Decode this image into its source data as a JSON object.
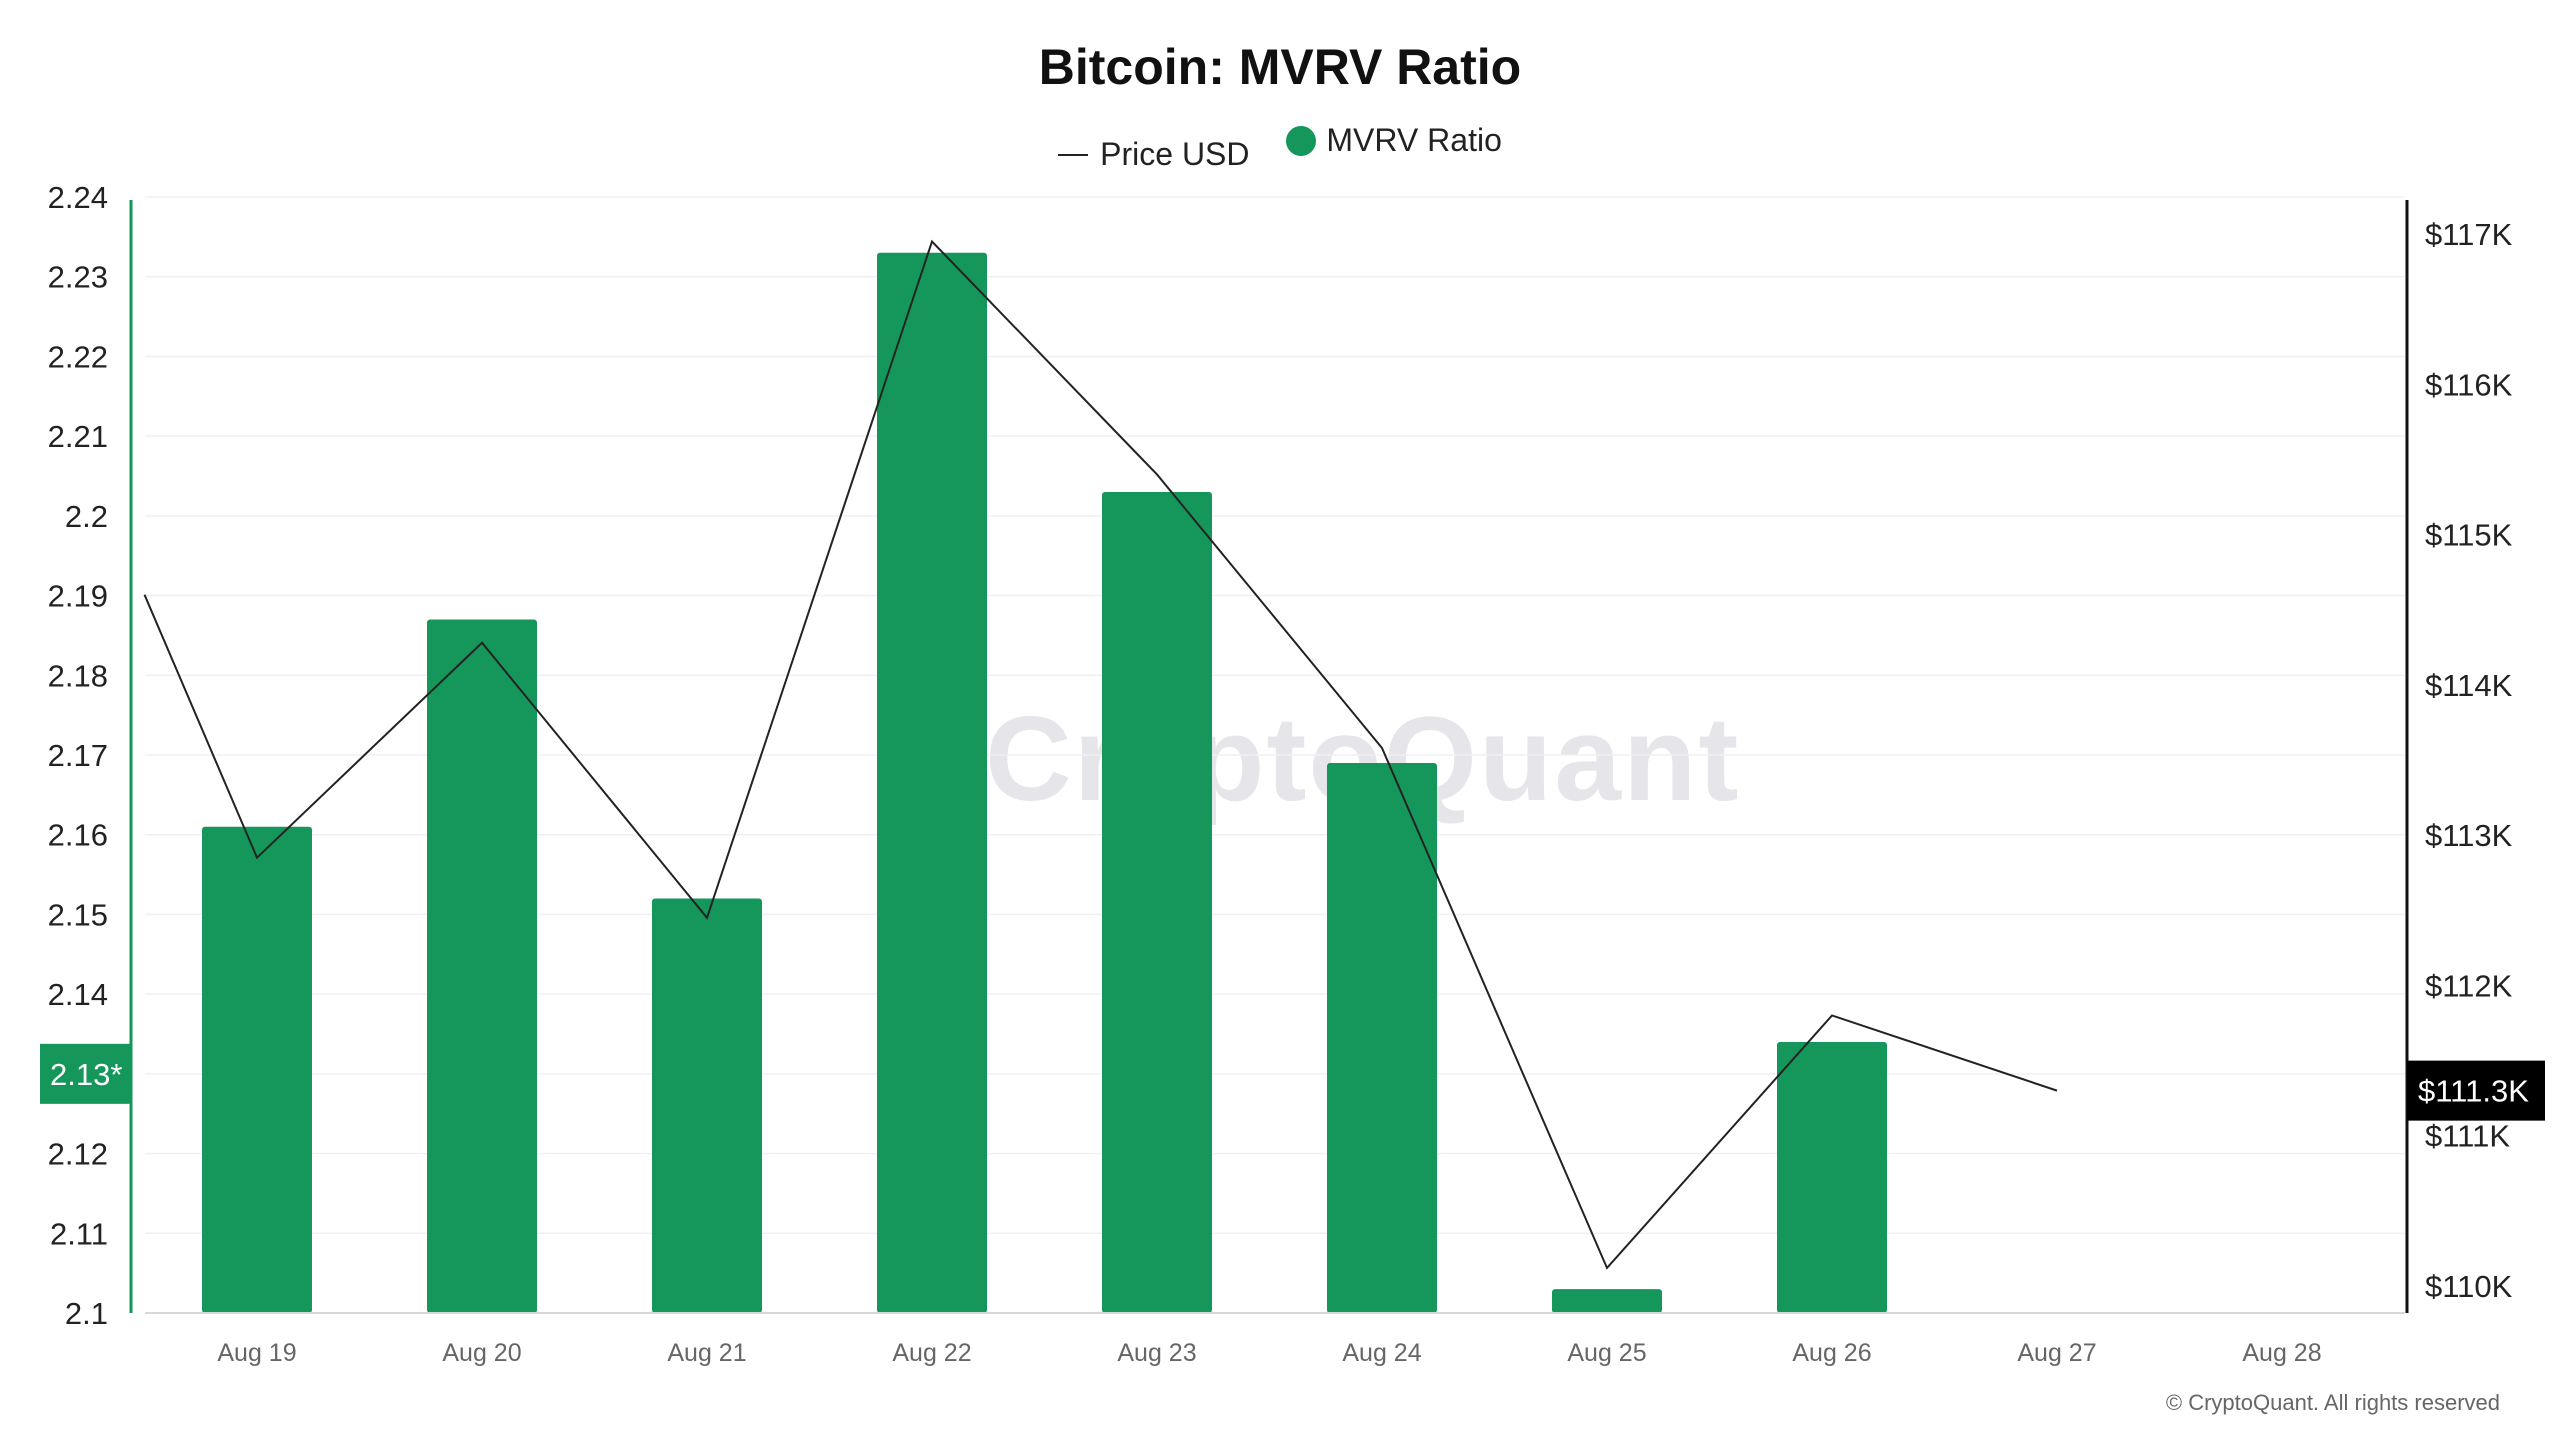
{
  "title": "Bitcoin: MVRV Ratio",
  "legend": [
    {
      "name": "Price USD",
      "kind": "line",
      "color": "#222222"
    },
    {
      "name": "MVRV Ratio",
      "kind": "dot",
      "color": "#15975c"
    }
  ],
  "watermark": "CryptoQuant",
  "copyright": "© CryptoQuant. All rights reserved",
  "chart_data": {
    "type": "bar",
    "categories": [
      "Aug 19",
      "Aug 20",
      "Aug 21",
      "Aug 22",
      "Aug 23",
      "Aug 24",
      "Aug 25",
      "Aug 26",
      "Aug 27",
      "Aug 28"
    ],
    "series": [
      {
        "name": "MVRV Ratio",
        "type": "bar",
        "axis": "left",
        "color": "#15975c",
        "values": [
          2.161,
          2.187,
          2.152,
          2.233,
          2.203,
          2.169,
          2.103,
          2.134,
          null,
          null
        ]
      },
      {
        "name": "Price USD",
        "type": "line",
        "axis": "right",
        "color": "#222222",
        "points": [
          {
            "x": "Aug 18.5",
            "y": 114600
          },
          {
            "x": "Aug 19",
            "y": 112850
          },
          {
            "x": "Aug 20",
            "y": 114280
          },
          {
            "x": "Aug 21",
            "y": 112450
          },
          {
            "x": "Aug 22",
            "y": 116950
          },
          {
            "x": "Aug 23",
            "y": 115400
          },
          {
            "x": "Aug 24",
            "y": 113580
          },
          {
            "x": "Aug 25",
            "y": 110120
          },
          {
            "x": "Aug 26",
            "y": 111800
          },
          {
            "x": "Aug 27",
            "y": 111300
          }
        ]
      }
    ],
    "y_left": {
      "ylim": [
        2.1,
        2.24
      ],
      "ticks": [
        "2.1",
        "2.11",
        "2.12",
        "2.13",
        "2.14",
        "2.15",
        "2.16",
        "2.17",
        "2.18",
        "2.19",
        "2.2",
        "2.21",
        "2.22",
        "2.23",
        "2.24"
      ],
      "current_label": "2.13*",
      "current_value": 2.13,
      "color": "#15975c"
    },
    "y_right": {
      "ylim": [
        110000,
        117000
      ],
      "ticks": [
        "$110K",
        "$111K",
        "$112K",
        "$113K",
        "$114K",
        "$115K",
        "$116K",
        "$117K"
      ],
      "current_label": "$111.3K",
      "current_value": 111300
    },
    "grid": true,
    "legend_position": "top-center"
  }
}
